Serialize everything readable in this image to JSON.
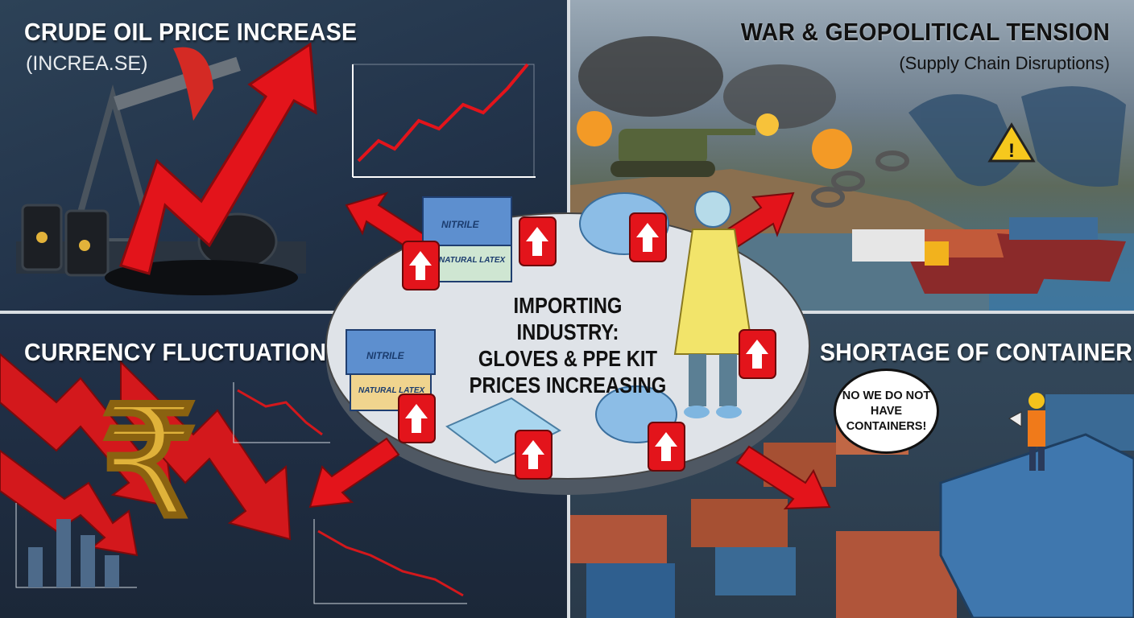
{
  "quadrants": {
    "crude_oil": {
      "title": "CRUDE OIL PRICE INCREASE",
      "subtitle": "(INCREA.SE)"
    },
    "war": {
      "title": "WAR & GEOPOLITICAL TENSION",
      "subtitle": "(Supply Chain Disruptions)"
    },
    "currency": {
      "title": "CURRENCY FLUCTUATION",
      "symbol": "₹"
    },
    "container": {
      "title": "SHORTAGE OF CONTAINER",
      "speech": "NO WE DO NOT HAVE CONTAINERS!"
    }
  },
  "center": {
    "title_lines": [
      "IMPORTING INDUSTRY:",
      "GLOVES & PPE KIT",
      "PRICES INCREASING"
    ],
    "box_labels": {
      "nitrile": "NITRILE",
      "latex": "NATURAL LATEX"
    }
  },
  "colors": {
    "arrow_red": "#e3141b",
    "gown_yellow": "#f2e46a",
    "ppe_blue": "#7fb6e0",
    "rupee_gold": "#e0b23a"
  }
}
